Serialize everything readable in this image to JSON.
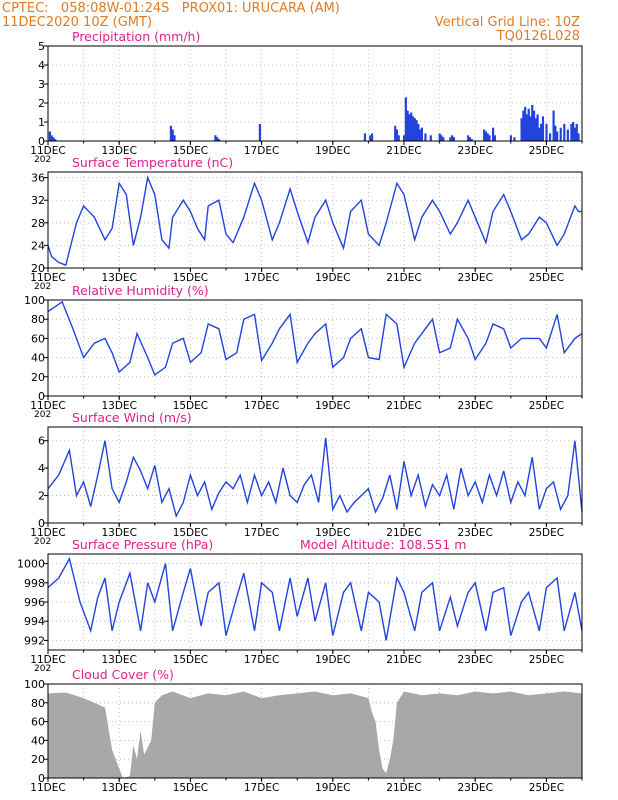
{
  "header": {
    "line1": "CPTEC:   058:08W-01:24S   PROX01: URUCARA (AM)",
    "line2": "11DEC2020 10Z (GMT)",
    "right1": "Vertical Grid Line: 10Z",
    "right2": "TQ0126L028"
  },
  "colors": {
    "header": "#e07b24",
    "title": "#e0208c",
    "series": "#2244dd",
    "cloud": "#a8a8a8",
    "grid": "#b5b5b5"
  },
  "x_axis": {
    "day_start": 11,
    "day_end": 26,
    "tick_labels": [
      "11DEC",
      "13DEC",
      "15DEC",
      "17DEC",
      "19DEC",
      "21DEC",
      "23DEC",
      "25DEC"
    ],
    "tick_days": [
      11,
      13,
      15,
      17,
      19,
      21,
      23,
      25
    ],
    "truncated_label": "202"
  },
  "chart_data": [
    {
      "type": "bar",
      "title": "Precipitation (mm/h)",
      "ylim": [
        0,
        5
      ],
      "yticks": [
        0,
        1,
        2,
        3,
        4,
        5
      ],
      "x": [
        11.05,
        11.1,
        11.15,
        11.2,
        14.45,
        14.5,
        14.55,
        15.7,
        15.75,
        15.8,
        16.95,
        19.9,
        20.05,
        20.1,
        20.75,
        20.8,
        20.85,
        21.0,
        21.05,
        21.1,
        21.15,
        21.2,
        21.25,
        21.3,
        21.35,
        21.4,
        21.45,
        21.5,
        21.6,
        21.75,
        22.0,
        22.05,
        22.1,
        22.3,
        22.35,
        22.4,
        22.8,
        22.85,
        22.9,
        23.25,
        23.3,
        23.35,
        23.4,
        23.5,
        23.55,
        24.0,
        24.1,
        24.3,
        24.35,
        24.4,
        24.45,
        24.5,
        24.55,
        24.6,
        24.65,
        24.7,
        24.75,
        24.8,
        24.85,
        24.9,
        25.0,
        25.1,
        25.2,
        25.25,
        25.3,
        25.4,
        25.5,
        25.6,
        25.7,
        25.75,
        25.8,
        25.85,
        25.9
      ],
      "values": [
        0.5,
        0.3,
        0.2,
        0.1,
        0.8,
        0.6,
        0.3,
        0.3,
        0.2,
        0.1,
        0.9,
        0.4,
        0.3,
        0.4,
        0.8,
        0.6,
        0.3,
        0.3,
        2.3,
        1.6,
        1.4,
        1.5,
        1.3,
        1.2,
        1.1,
        0.9,
        0.6,
        0.7,
        0.4,
        0.3,
        0.4,
        0.3,
        0.2,
        0.2,
        0.3,
        0.2,
        0.3,
        0.2,
        0.1,
        0.6,
        0.5,
        0.4,
        0.3,
        0.7,
        0.3,
        0.3,
        0.2,
        1.2,
        1.6,
        1.8,
        1.4,
        1.7,
        1.3,
        1.9,
        1.6,
        1.2,
        1.4,
        0.7,
        0.9,
        1.3,
        0.9,
        0.4,
        1.6,
        0.8,
        0.5,
        0.7,
        0.9,
        0.6,
        0.9,
        1.0,
        0.7,
        0.9,
        0.4
      ]
    },
    {
      "type": "line",
      "title": "Surface Temperature (nC)",
      "ylim": [
        20,
        37
      ],
      "yticks": [
        20,
        24,
        28,
        32,
        36
      ],
      "x": [
        11.0,
        11.1,
        11.3,
        11.5,
        11.8,
        12.0,
        12.3,
        12.6,
        12.8,
        13.0,
        13.2,
        13.4,
        13.6,
        13.8,
        14.0,
        14.2,
        14.4,
        14.5,
        14.8,
        15.0,
        15.2,
        15.4,
        15.5,
        15.8,
        16.0,
        16.2,
        16.5,
        16.8,
        17.0,
        17.3,
        17.5,
        17.8,
        18.0,
        18.3,
        18.5,
        18.8,
        19.0,
        19.3,
        19.5,
        19.8,
        20.0,
        20.3,
        20.5,
        20.8,
        21.0,
        21.3,
        21.5,
        21.8,
        22.0,
        22.3,
        22.5,
        22.8,
        23.0,
        23.3,
        23.5,
        23.8,
        24.0,
        24.3,
        24.5,
        24.8,
        25.0,
        25.3,
        25.5,
        25.8,
        25.9,
        26.0
      ],
      "values": [
        24,
        22,
        21,
        20.5,
        28,
        31,
        29,
        25,
        27,
        35,
        33,
        24,
        29,
        36,
        33,
        25,
        23.5,
        29,
        32,
        30,
        27,
        25,
        31,
        32,
        26,
        24.5,
        29,
        35,
        32,
        25,
        28,
        34,
        30,
        24.5,
        29,
        32,
        28,
        23.5,
        30,
        32,
        26,
        24,
        28,
        35,
        33,
        25,
        29,
        32,
        30,
        26,
        28,
        32,
        29,
        24.5,
        30,
        33,
        30,
        25,
        26,
        29,
        28,
        24,
        26,
        31,
        30,
        30
      ]
    },
    {
      "type": "line",
      "title": "Relative Humidity (%)",
      "ylim": [
        0,
        100
      ],
      "yticks": [
        0,
        20,
        40,
        60,
        80,
        100
      ],
      "x": [
        11.0,
        11.2,
        11.4,
        11.7,
        12.0,
        12.3,
        12.6,
        12.8,
        13.0,
        13.3,
        13.5,
        13.8,
        14.0,
        14.3,
        14.5,
        14.8,
        15.0,
        15.3,
        15.5,
        15.8,
        16.0,
        16.3,
        16.5,
        16.8,
        17.0,
        17.3,
        17.5,
        17.8,
        18.0,
        18.3,
        18.5,
        18.8,
        19.0,
        19.3,
        19.5,
        19.8,
        20.0,
        20.3,
        20.5,
        20.8,
        21.0,
        21.3,
        21.5,
        21.8,
        22.0,
        22.3,
        22.5,
        22.8,
        23.0,
        23.3,
        23.5,
        23.8,
        24.0,
        24.3,
        24.5,
        24.8,
        25.0,
        25.3,
        25.5,
        25.8,
        26.0
      ],
      "values": [
        88,
        93,
        98,
        70,
        40,
        55,
        60,
        45,
        25,
        35,
        65,
        40,
        22,
        30,
        55,
        60,
        35,
        45,
        75,
        70,
        38,
        45,
        80,
        85,
        37,
        55,
        70,
        85,
        35,
        55,
        65,
        75,
        30,
        40,
        60,
        70,
        40,
        38,
        85,
        75,
        30,
        55,
        65,
        80,
        45,
        50,
        80,
        60,
        38,
        55,
        75,
        70,
        50,
        60,
        60,
        60,
        50,
        85,
        45,
        60,
        65
      ]
    },
    {
      "type": "line",
      "title": "Surface Wind (m/s)",
      "ylim": [
        0,
        7
      ],
      "yticks": [
        0,
        2,
        4,
        6
      ],
      "x": [
        11.0,
        11.3,
        11.6,
        11.8,
        12.0,
        12.2,
        12.4,
        12.6,
        12.8,
        13.0,
        13.2,
        13.4,
        13.6,
        13.8,
        14.0,
        14.2,
        14.4,
        14.6,
        14.8,
        15.0,
        15.2,
        15.4,
        15.6,
        15.8,
        16.0,
        16.2,
        16.4,
        16.6,
        16.8,
        17.0,
        17.2,
        17.4,
        17.6,
        17.8,
        18.0,
        18.2,
        18.4,
        18.6,
        18.8,
        19.0,
        19.2,
        19.4,
        19.6,
        19.8,
        20.0,
        20.2,
        20.4,
        20.6,
        20.8,
        21.0,
        21.2,
        21.4,
        21.6,
        21.8,
        22.0,
        22.2,
        22.4,
        22.6,
        22.8,
        23.0,
        23.2,
        23.4,
        23.6,
        23.8,
        24.0,
        24.2,
        24.4,
        24.6,
        24.8,
        25.0,
        25.2,
        25.4,
        25.6,
        25.8,
        26.0
      ],
      "values": [
        2.5,
        3.5,
        5.3,
        2.0,
        3.0,
        1.2,
        3.5,
        6.0,
        2.5,
        1.5,
        3.0,
        4.8,
        3.8,
        2.5,
        4.2,
        1.5,
        2.5,
        0.5,
        1.5,
        3.5,
        2.0,
        3.0,
        1.0,
        2.2,
        3.0,
        2.5,
        3.5,
        1.5,
        3.5,
        2.0,
        3.0,
        1.5,
        4.0,
        2.0,
        1.5,
        2.8,
        3.5,
        1.5,
        6.2,
        1.0,
        2.0,
        0.8,
        1.5,
        2.0,
        2.5,
        0.8,
        1.8,
        3.5,
        1.0,
        4.5,
        2.0,
        3.5,
        1.2,
        2.8,
        2.0,
        3.5,
        1.0,
        4.0,
        2.0,
        3.0,
        1.5,
        3.5,
        2.0,
        3.8,
        1.5,
        3.0,
        2.0,
        4.8,
        1.0,
        2.5,
        3.0,
        1.0,
        2.0,
        6.0,
        0.8
      ]
    },
    {
      "type": "line",
      "title": "Surface Pressure (hPa)",
      "annotation": "Model Altitude: 108.551 m",
      "ylim": [
        991,
        1001
      ],
      "yticks": [
        992,
        994,
        996,
        998,
        1000
      ],
      "x": [
        11.0,
        11.3,
        11.6,
        11.9,
        12.2,
        12.4,
        12.6,
        12.8,
        13.0,
        13.3,
        13.6,
        13.8,
        14.0,
        14.3,
        14.5,
        14.8,
        15.0,
        15.3,
        15.5,
        15.8,
        16.0,
        16.3,
        16.5,
        16.8,
        17.0,
        17.3,
        17.5,
        17.8,
        18.0,
        18.3,
        18.5,
        18.8,
        19.0,
        19.3,
        19.5,
        19.8,
        20.0,
        20.3,
        20.5,
        20.8,
        21.0,
        21.3,
        21.5,
        21.8,
        22.0,
        22.3,
        22.5,
        22.8,
        23.0,
        23.3,
        23.5,
        23.8,
        24.0,
        24.3,
        24.5,
        24.8,
        25.0,
        25.3,
        25.5,
        25.8,
        26.0
      ],
      "values": [
        997.5,
        998.5,
        1000.5,
        996,
        993,
        996.5,
        998.5,
        993,
        996,
        999,
        993,
        998,
        996,
        1000,
        993,
        997,
        999.5,
        993.5,
        997,
        998,
        992.5,
        996.5,
        999,
        993,
        998,
        997,
        993,
        998.5,
        994.5,
        998.5,
        994,
        998,
        992.5,
        997,
        998,
        993,
        997,
        996,
        992,
        998.5,
        997,
        993,
        997,
        998,
        993,
        996.5,
        993.5,
        997,
        998,
        993,
        997,
        997.5,
        992.5,
        996,
        997,
        993,
        997.5,
        998.5,
        993,
        997,
        993
      ]
    },
    {
      "type": "area",
      "title": "Cloud Cover (%)",
      "ylim": [
        0,
        100
      ],
      "yticks": [
        0,
        20,
        40,
        60,
        80,
        100
      ],
      "x": [
        11.0,
        11.5,
        12.0,
        12.3,
        12.6,
        12.8,
        13.0,
        13.1,
        13.3,
        13.4,
        13.5,
        13.6,
        13.7,
        13.9,
        14.0,
        14.2,
        14.5,
        15.0,
        15.5,
        16.0,
        16.5,
        17.0,
        17.5,
        18.0,
        18.5,
        19.0,
        19.5,
        20.0,
        20.1,
        20.2,
        20.3,
        20.4,
        20.5,
        20.6,
        20.7,
        20.8,
        21.0,
        21.5,
        22.0,
        22.5,
        23.0,
        23.5,
        24.0,
        24.5,
        25.0,
        25.5,
        26.0
      ],
      "values": [
        90,
        91,
        85,
        80,
        75,
        30,
        10,
        0,
        2,
        35,
        20,
        50,
        25,
        40,
        80,
        88,
        92,
        85,
        90,
        88,
        92,
        85,
        88,
        90,
        92,
        88,
        90,
        85,
        70,
        60,
        30,
        10,
        5,
        20,
        40,
        80,
        92,
        88,
        90,
        88,
        92,
        90,
        92,
        88,
        90,
        92,
        90
      ]
    }
  ]
}
